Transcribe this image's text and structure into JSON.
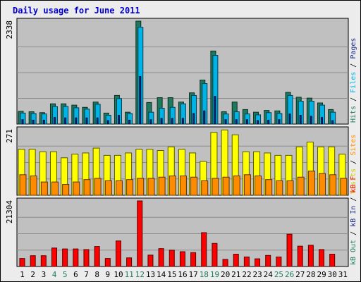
{
  "chart_data": {
    "type": "bar",
    "title": "Daily usage for June 2011",
    "categories": [
      "1",
      "2",
      "3",
      "4",
      "5",
      "6",
      "7",
      "8",
      "9",
      "10",
      "11",
      "12",
      "13",
      "14",
      "15",
      "16",
      "17",
      "18",
      "19",
      "20",
      "21",
      "22",
      "23",
      "24",
      "25",
      "26",
      "27",
      "28",
      "29",
      "30",
      "31"
    ],
    "weekend_days": [
      "4",
      "5",
      "11",
      "12",
      "18",
      "19",
      "25",
      "26"
    ],
    "panels": [
      {
        "id": "top",
        "ymax_label": "2338",
        "ylim": [
          0,
          2338
        ],
        "series": [
          {
            "name": "Hits",
            "color": "#1e7a5e",
            "values": [
              290,
              280,
              260,
              460,
              460,
              430,
              380,
              500,
              250,
              650,
              270,
              2338,
              490,
              600,
              600,
              500,
              710,
              1000,
              1660,
              280,
              500,
              330,
              270,
              310,
              300,
              720,
              610,
              590,
              480,
              330,
              0
            ]
          },
          {
            "name": "Files",
            "color": "#00b3e6",
            "values": [
              250,
              240,
              230,
              400,
              400,
              370,
              340,
              450,
              200,
              580,
              240,
              2200,
              270,
              360,
              380,
              460,
              650,
              920,
              1560,
              230,
              280,
              230,
              210,
              260,
              240,
              650,
              520,
              520,
              430,
              270,
              0
            ]
          },
          {
            "name": "Pages",
            "color": "#1a2b8c",
            "values": [
              100,
              90,
              90,
              150,
              140,
              140,
              140,
              140,
              80,
              200,
              90,
              1080,
              100,
              130,
              130,
              130,
              240,
              300,
              630,
              100,
              100,
              100,
              80,
              90,
              100,
              230,
              200,
              180,
              150,
              80,
              0
            ]
          }
        ],
        "legend": [
          {
            "text": "Hits",
            "color": "#1e7a5e"
          },
          {
            "text": "/",
            "color": "#000000"
          },
          {
            "text": "Files",
            "color": "#00b3e6"
          },
          {
            "text": "/",
            "color": "#000000"
          },
          {
            "text": "Pages",
            "color": "#1a2b8c"
          }
        ]
      },
      {
        "id": "middle",
        "ymax_label": "271",
        "ylim": [
          0,
          271
        ],
        "series": [
          {
            "name": "Visits",
            "color": "#ffff00",
            "values": [
              190,
              190,
              180,
              180,
              155,
              170,
              175,
              195,
              165,
              165,
              175,
              190,
              190,
              185,
              200,
              190,
              175,
              140,
              260,
              270,
              250,
              180,
              180,
              175,
              165,
              165,
              200,
              220,
              200,
              200,
              170
            ]
          },
          {
            "name": "Sites",
            "color": "#ff8c00",
            "values": [
              85,
              80,
              55,
              55,
              45,
              55,
              65,
              70,
              60,
              60,
              65,
              70,
              70,
              75,
              80,
              80,
              75,
              60,
              70,
              75,
              80,
              85,
              80,
              65,
              60,
              60,
              75,
              100,
              90,
              85,
              70
            ]
          }
        ],
        "legend": [
          {
            "text": "Visits",
            "color": "#cccc00"
          },
          {
            "text": "/",
            "color": "#000000"
          },
          {
            "text": "Sites",
            "color": "#ff8c00"
          }
        ]
      },
      {
        "id": "bottom",
        "ymax_label": "21304",
        "ylim": [
          0,
          21304
        ],
        "series": [
          {
            "name": "KBytes",
            "color": "#ff0000",
            "values": [
              2600,
              3500,
              3500,
              6000,
              5700,
              5700,
              5500,
              6500,
              2600,
              8300,
              2800,
              21304,
              3700,
              5800,
              5300,
              4800,
              4500,
              11000,
              7500,
              2300,
              4000,
              3100,
              2500,
              3600,
              3100,
              10500,
              6600,
              6900,
              5500,
              4000,
              0
            ]
          }
        ],
        "legend": [
          {
            "text": "kB Out",
            "color": "#1e7a5e"
          },
          {
            "text": "/",
            "color": "#000000"
          },
          {
            "text": "kB In",
            "color": "#1a2b8c"
          },
          {
            "text": "/",
            "color": "#000000"
          },
          {
            "text": "kB F",
            "color": "#ff0000"
          }
        ]
      }
    ],
    "grid": true,
    "legend_placement": "right"
  },
  "colors": {
    "title": "#0000cc",
    "plot_background": "#c0c0c0",
    "frame_background": "#ececec",
    "weekend_label": "#1e7a5e",
    "weekday_label": "#000000"
  }
}
